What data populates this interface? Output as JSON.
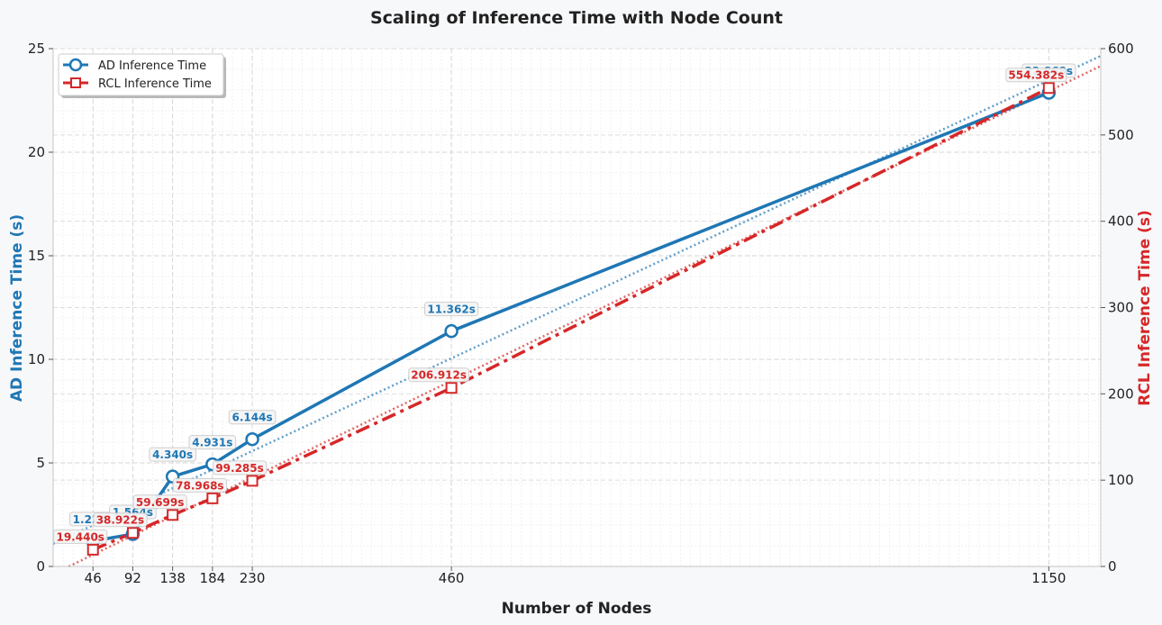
{
  "chart_data": {
    "type": "line",
    "title": "Scaling of Inference Time with Node Count",
    "xlabel": "Number of Nodes",
    "ylabel_left": "AD Inference Time (s)",
    "ylabel_right": "RCL Inference Time (s)",
    "x": [
      46,
      92,
      138,
      184,
      230,
      460,
      1150
    ],
    "x_tick_labels": [
      "46",
      "92",
      "138",
      "184",
      "230",
      "460",
      "1150"
    ],
    "xlim": [
      0,
      1210
    ],
    "ylim_left": [
      0,
      25
    ],
    "ylim_right": [
      0,
      600
    ],
    "y_ticks_left": [
      "0",
      "5",
      "10",
      "15",
      "20",
      "25"
    ],
    "y_ticks_right": [
      "0",
      "100",
      "200",
      "300",
      "400",
      "500",
      "600"
    ],
    "grid": true,
    "legend_position": "top-left",
    "series": [
      {
        "name": "AD Inference Time",
        "axis": "left",
        "color": "#1f77b4",
        "marker": "circle",
        "line_style": "solid",
        "values": [
          1.224,
          1.564,
          4.34,
          4.931,
          6.144,
          11.362,
          22.868
        ],
        "labels": [
          "1.224s",
          "1.564s",
          "4.340s",
          "4.931s",
          "6.144s",
          "11.362s",
          "22.868s"
        ]
      },
      {
        "name": "RCL Inference Time",
        "axis": "right",
        "color": "#d62728",
        "marker": "square",
        "line_style": "dashdot",
        "values": [
          19.44,
          38.922,
          59.699,
          78.968,
          99.285,
          206.912,
          554.382
        ],
        "labels": [
          "19.440s",
          "38.922s",
          "59.699s",
          "78.968s",
          "99.285s",
          "206.912s",
          "554.382s"
        ]
      }
    ]
  }
}
